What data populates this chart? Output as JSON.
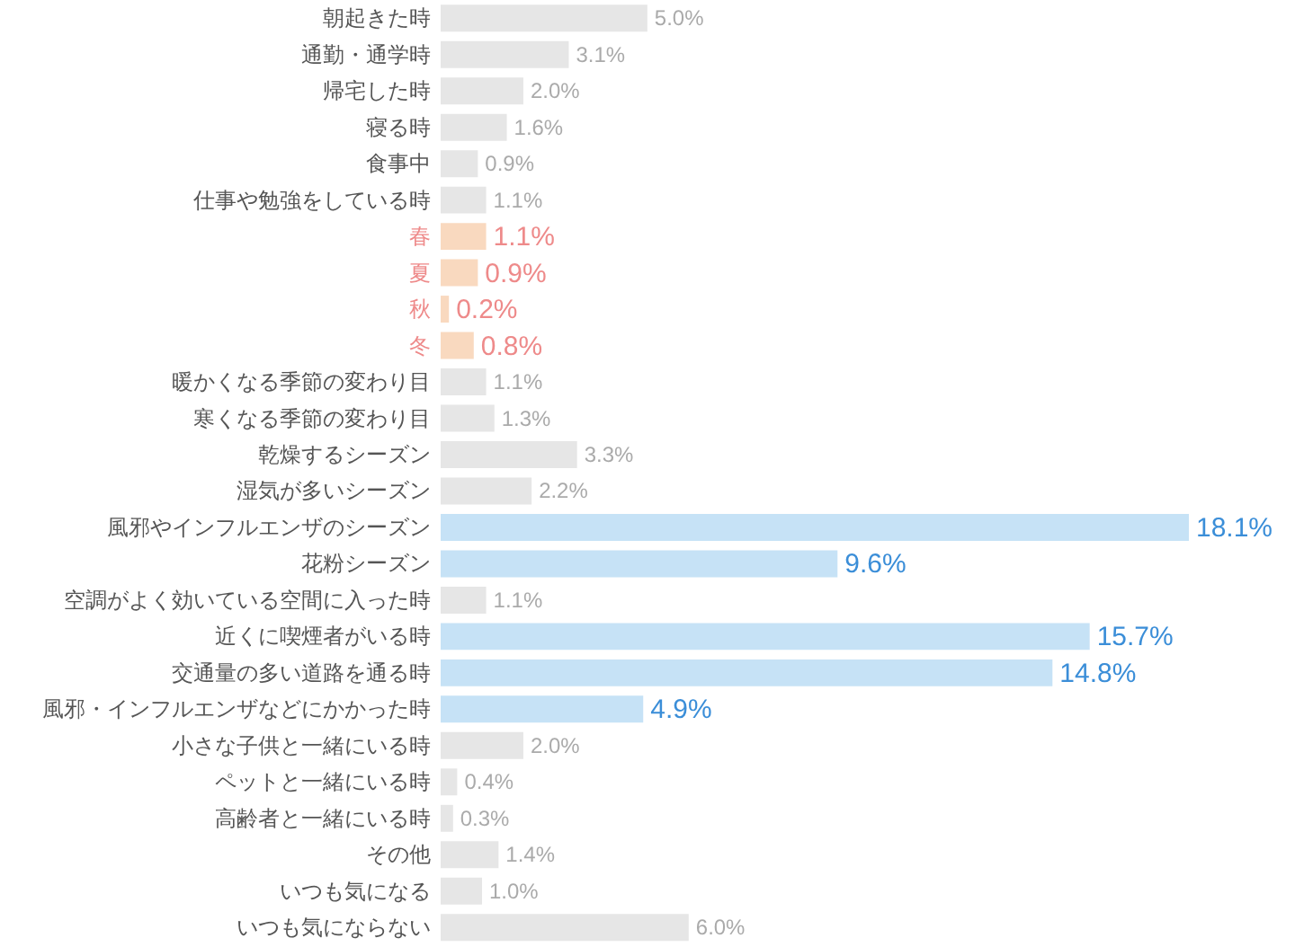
{
  "chart_data": {
    "type": "bar",
    "orientation": "horizontal",
    "categories": [
      "朝起きた時",
      "通勤・通学時",
      "帰宅した時",
      "寝る時",
      "食事中",
      "仕事や勉強をしている時",
      "春",
      "夏",
      "秋",
      "冬",
      "暖かくなる季節の変わり目",
      "寒くなる季節の変わり目",
      "乾燥するシーズン",
      "湿気が多いシーズン",
      "風邪やインフルエンザのシーズン",
      "花粉シーズン",
      "空調がよく効いている空間に入った時",
      "近くに喫煙者がいる時",
      "交通量の多い道路を通る時",
      "風邪・インフルエンザなどにかかった時",
      "小さな子供と一緒にいる時",
      "ペットと一緒にいる時",
      "高齢者と一緒にいる時",
      "その他",
      "いつも気になる",
      "いつも気にならない"
    ],
    "values": [
      5.0,
      3.1,
      2.0,
      1.6,
      0.9,
      1.1,
      1.1,
      0.9,
      0.2,
      0.8,
      1.1,
      1.3,
      3.3,
      2.2,
      18.1,
      9.6,
      1.1,
      15.7,
      14.8,
      4.9,
      2.0,
      0.4,
      0.3,
      1.4,
      1.0,
      6.0
    ],
    "value_labels": [
      "5.0%",
      "3.1%",
      "2.0%",
      "1.6%",
      "0.9%",
      "1.1%",
      "1.1%",
      "0.9%",
      "0.2%",
      "0.8%",
      "1.1%",
      "1.3%",
      "3.3%",
      "2.2%",
      "18.1%",
      "9.6%",
      "1.1%",
      "15.7%",
      "14.8%",
      "4.9%",
      "2.0%",
      "0.4%",
      "0.3%",
      "1.4%",
      "1.0%",
      "6.0%"
    ],
    "colors": [
      "#e6e6e6",
      "#e6e6e6",
      "#e6e6e6",
      "#e6e6e6",
      "#e6e6e6",
      "#e6e6e6",
      "#f9d9bf",
      "#f9d9bf",
      "#f9d9bf",
      "#f9d9bf",
      "#e6e6e6",
      "#e6e6e6",
      "#e6e6e6",
      "#e6e6e6",
      "#c6e2f6",
      "#c6e2f6",
      "#e6e6e6",
      "#c6e2f6",
      "#c6e2f6",
      "#c6e2f6",
      "#e6e6e6",
      "#e6e6e6",
      "#e6e6e6",
      "#e6e6e6",
      "#e6e6e6",
      "#e6e6e6"
    ]
  }
}
